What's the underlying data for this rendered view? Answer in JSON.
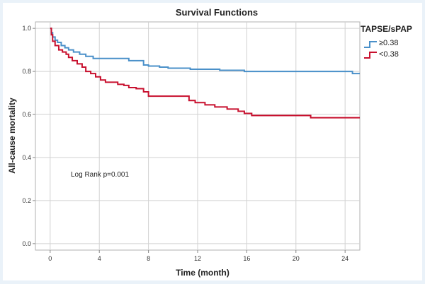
{
  "chart_data": {
    "type": "line",
    "title": "Survival Functions",
    "xlabel": "Time (month)",
    "ylabel": "All-cause mortality",
    "xlim": [
      -1.2,
      25.2
    ],
    "ylim": [
      -0.03,
      1.03
    ],
    "xticks": [
      0,
      4,
      8,
      12,
      16,
      20,
      24
    ],
    "yticks": [
      0.0,
      0.2,
      0.4,
      0.6,
      0.8,
      1.0
    ],
    "ytick_labels": [
      "0.0",
      "0.2",
      "0.4",
      "0.6",
      "0.8",
      "1.0"
    ],
    "grid": true,
    "annotation": "Log Rank p=0.001",
    "legend": {
      "title": "TAPSE/sPAP",
      "position": "top-right outside",
      "entries": [
        "≥0.38",
        "<0.38"
      ]
    },
    "series": [
      {
        "name": "≥0.38",
        "color": "#4a90c9",
        "step": [
          [
            0,
            1.0
          ],
          [
            0.1,
            0.98
          ],
          [
            0.2,
            0.96
          ],
          [
            0.4,
            0.945
          ],
          [
            0.6,
            0.935
          ],
          [
            0.9,
            0.92
          ],
          [
            1.2,
            0.91
          ],
          [
            1.5,
            0.9
          ],
          [
            1.9,
            0.89
          ],
          [
            2.4,
            0.88
          ],
          [
            2.9,
            0.87
          ],
          [
            3.5,
            0.86
          ],
          [
            6.4,
            0.85
          ],
          [
            7.6,
            0.83
          ],
          [
            8.0,
            0.825
          ],
          [
            8.9,
            0.82
          ],
          [
            9.6,
            0.815
          ],
          [
            11.4,
            0.81
          ],
          [
            13.8,
            0.805
          ],
          [
            15.8,
            0.8
          ],
          [
            24.6,
            0.79
          ],
          [
            25.2,
            0.79
          ]
        ]
      },
      {
        "name": "<0.38",
        "color": "#c8102e",
        "step": [
          [
            0,
            1.0
          ],
          [
            0.1,
            0.97
          ],
          [
            0.2,
            0.94
          ],
          [
            0.4,
            0.92
          ],
          [
            0.7,
            0.9
          ],
          [
            1.0,
            0.89
          ],
          [
            1.3,
            0.88
          ],
          [
            1.5,
            0.865
          ],
          [
            1.8,
            0.85
          ],
          [
            2.2,
            0.835
          ],
          [
            2.6,
            0.82
          ],
          [
            2.9,
            0.8
          ],
          [
            3.3,
            0.79
          ],
          [
            3.7,
            0.775
          ],
          [
            4.1,
            0.76
          ],
          [
            4.5,
            0.75
          ],
          [
            5.5,
            0.74
          ],
          [
            6.0,
            0.735
          ],
          [
            6.4,
            0.725
          ],
          [
            7.0,
            0.72
          ],
          [
            7.6,
            0.705
          ],
          [
            8.0,
            0.685
          ],
          [
            11.3,
            0.665
          ],
          [
            11.8,
            0.655
          ],
          [
            12.6,
            0.645
          ],
          [
            13.4,
            0.635
          ],
          [
            14.4,
            0.625
          ],
          [
            15.3,
            0.615
          ],
          [
            15.8,
            0.605
          ],
          [
            16.4,
            0.595
          ],
          [
            21.2,
            0.585
          ],
          [
            25.2,
            0.585
          ]
        ]
      }
    ]
  }
}
